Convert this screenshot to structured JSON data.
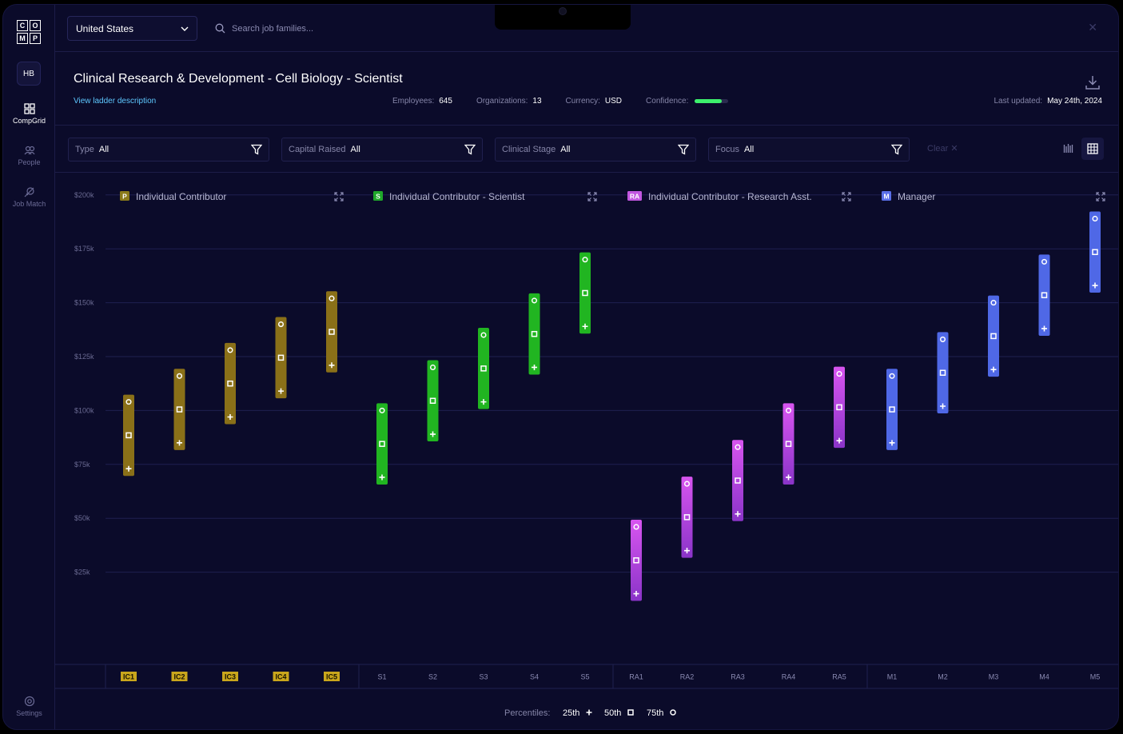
{
  "sidebar": {
    "logo_letters": [
      "C",
      "O",
      "M",
      "P"
    ],
    "org_initials": "HB",
    "items": [
      {
        "label": "CompGrid",
        "icon": "grid-icon",
        "active": true
      },
      {
        "label": "People",
        "icon": "people-icon",
        "active": false
      },
      {
        "label": "Job Match",
        "icon": "job-match-icon",
        "active": false
      }
    ],
    "settings_label": "Settings"
  },
  "topbar": {
    "country": "United States",
    "search_placeholder": "Search job families..."
  },
  "header": {
    "title": "Clinical Research & Development - Cell Biology - Scientist",
    "ladder_link": "View ladder description",
    "employees_label": "Employees:",
    "employees": "645",
    "organizations_label": "Organizations:",
    "organizations": "13",
    "currency_label": "Currency:",
    "currency": "USD",
    "confidence_label": "Confidence:",
    "confidence": 0.8,
    "confidence_color": "#3df06c",
    "updated_label": "Last updated:",
    "updated": "May 24th, 2024"
  },
  "filters": [
    {
      "label": "Type",
      "value": "All"
    },
    {
      "label": "Capital Raised",
      "value": "All"
    },
    {
      "label": "Clinical Stage",
      "value": "All"
    },
    {
      "label": "Focus",
      "value": "All"
    }
  ],
  "clear_label": "Clear",
  "chart_data": {
    "type": "range",
    "y_ticks": [
      "$200k",
      "$175k",
      "$150k",
      "$125k",
      "$100k",
      "$75k",
      "$50k",
      "$25k"
    ],
    "y_tick_values": [
      200000,
      175000,
      150000,
      125000,
      100000,
      75000,
      50000,
      25000
    ],
    "groups": [
      {
        "badge": "P",
        "name": "Individual Contributor",
        "color": "#8a7018",
        "badge_color": "#8a7a1a",
        "levels": [
          {
            "label": "IC1",
            "p25": 73000,
            "p50": 88500,
            "p75": 104000
          },
          {
            "label": "IC2",
            "p25": 85000,
            "p50": 100500,
            "p75": 116000
          },
          {
            "label": "IC3",
            "p25": 97000,
            "p50": 112500,
            "p75": 128000
          },
          {
            "label": "IC4",
            "p25": 109000,
            "p50": 124500,
            "p75": 140000
          },
          {
            "label": "IC5",
            "p25": 121000,
            "p50": 136500,
            "p75": 152000
          }
        ]
      },
      {
        "badge": "S",
        "name": "Individual Contributor - Scientist",
        "color": "#21b521",
        "badge_color": "#1fa82a",
        "levels": [
          {
            "label": "S1",
            "p25": 69000,
            "p50": 84500,
            "p75": 100000
          },
          {
            "label": "S2",
            "p25": 89000,
            "p50": 104500,
            "p75": 120000
          },
          {
            "label": "S3",
            "p25": 104000,
            "p50": 119500,
            "p75": 135000
          },
          {
            "label": "S4",
            "p25": 120000,
            "p50": 135500,
            "p75": 151000
          },
          {
            "label": "S5",
            "p25": 139000,
            "p50": 154500,
            "p75": 170000
          }
        ]
      },
      {
        "badge": "RA",
        "name": "Individual Contributor - Research Asst.",
        "color": "#c447e8",
        "badge_color": "#c257e0",
        "levels": [
          {
            "label": "RA1",
            "p25": 15000,
            "p50": 30500,
            "p75": 46000
          },
          {
            "label": "RA2",
            "p25": 35000,
            "p50": 50500,
            "p75": 66000
          },
          {
            "label": "RA3",
            "p25": 52000,
            "p50": 67500,
            "p75": 83000
          },
          {
            "label": "RA4",
            "p25": 69000,
            "p50": 84500,
            "p75": 100000
          },
          {
            "label": "RA5",
            "p25": 86000,
            "p50": 101500,
            "p75": 117000
          }
        ]
      },
      {
        "badge": "M",
        "name": "Manager",
        "color": "#4f68e6",
        "badge_color": "#5a6fe8",
        "levels": [
          {
            "label": "M1",
            "p25": 85000,
            "p50": 100500,
            "p75": 116000
          },
          {
            "label": "M2",
            "p25": 102000,
            "p50": 117500,
            "p75": 133000
          },
          {
            "label": "M3",
            "p25": 119000,
            "p50": 134500,
            "p75": 150000
          },
          {
            "label": "M4",
            "p25": 138000,
            "p50": 153500,
            "p75": 169000
          },
          {
            "label": "M5",
            "p25": 158000,
            "p50": 173500,
            "p75": 189000
          }
        ]
      }
    ],
    "percentiles_label": "Percentiles:",
    "legend": [
      {
        "label": "25th",
        "marker": "plus"
      },
      {
        "label": "50th",
        "marker": "square"
      },
      {
        "label": "75th",
        "marker": "circle"
      }
    ]
  }
}
